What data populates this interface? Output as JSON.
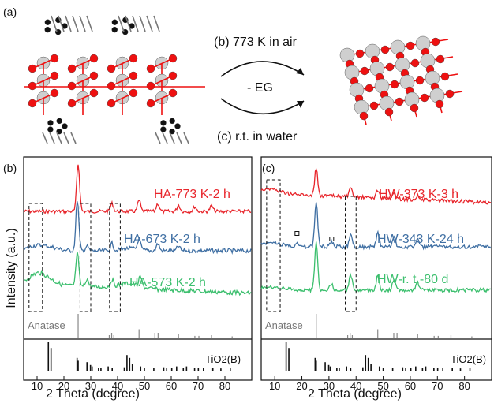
{
  "scheme": {
    "panel_label": "(a)",
    "top_label": "(b) 773 K in air",
    "middle_label": "- EG",
    "bottom_label": "(c) r.t. in water"
  },
  "ylabel": "Intensity (a.u.)",
  "xlabel": "2 Theta (degree)",
  "ref_label_anatase": "Anatase",
  "ref_label_tio2b": "TiO2(B)",
  "colors": {
    "red": "#e8262c",
    "blue": "#3f6fa3",
    "green": "#3cbf6e",
    "grey": "#888888",
    "black": "#111111"
  },
  "chart_data": [
    {
      "type": "line",
      "panel_label": "(b)",
      "xlabel": "2 Theta (degree)",
      "ylabel": "Intensity (a.u.)",
      "xlim": [
        5,
        90
      ],
      "xticks": [
        10,
        20,
        30,
        40,
        50,
        60,
        70,
        80
      ],
      "series": [
        {
          "name": "HA-773 K-2 h",
          "color": "#e8262c"
        },
        {
          "name": "HA-673 K-2 h",
          "color": "#3f6fa3"
        },
        {
          "name": "HA-573 K-2 h",
          "color": "#3cbf6e"
        }
      ],
      "anatase_lines": [
        {
          "x": 25.3,
          "h": 1.0
        },
        {
          "x": 36.9,
          "h": 0.1
        },
        {
          "x": 37.8,
          "h": 0.2
        },
        {
          "x": 38.6,
          "h": 0.1
        },
        {
          "x": 48.0,
          "h": 0.35
        },
        {
          "x": 53.9,
          "h": 0.2
        },
        {
          "x": 55.1,
          "h": 0.2
        },
        {
          "x": 62.7,
          "h": 0.15
        },
        {
          "x": 68.8,
          "h": 0.07
        },
        {
          "x": 70.3,
          "h": 0.07
        },
        {
          "x": 75.0,
          "h": 0.1
        },
        {
          "x": 82.7,
          "h": 0.05
        }
      ],
      "tio2b_lines": [
        {
          "x": 14.2,
          "h": 1.0
        },
        {
          "x": 15.2,
          "h": 0.8
        },
        {
          "x": 24.9,
          "h": 0.45
        },
        {
          "x": 25.3,
          "h": 0.35
        },
        {
          "x": 28.6,
          "h": 0.3
        },
        {
          "x": 29.9,
          "h": 0.2
        },
        {
          "x": 30.5,
          "h": 0.15
        },
        {
          "x": 32.9,
          "h": 0.1
        },
        {
          "x": 33.8,
          "h": 0.1
        },
        {
          "x": 36.5,
          "h": 0.15
        },
        {
          "x": 38.0,
          "h": 0.1
        },
        {
          "x": 42.5,
          "h": 0.12
        },
        {
          "x": 43.5,
          "h": 0.55
        },
        {
          "x": 44.5,
          "h": 0.45
        },
        {
          "x": 45.5,
          "h": 0.25
        },
        {
          "x": 48.6,
          "h": 0.15
        },
        {
          "x": 50.0,
          "h": 0.1
        },
        {
          "x": 53.5,
          "h": 0.1
        },
        {
          "x": 57.2,
          "h": 0.12
        },
        {
          "x": 58.3,
          "h": 0.1
        },
        {
          "x": 60.2,
          "h": 0.1
        },
        {
          "x": 62.0,
          "h": 0.15
        },
        {
          "x": 64.5,
          "h": 0.1
        },
        {
          "x": 65.7,
          "h": 0.15
        },
        {
          "x": 68.7,
          "h": 0.1
        },
        {
          "x": 70.1,
          "h": 0.1
        },
        {
          "x": 72.0,
          "h": 0.1
        },
        {
          "x": 75.5,
          "h": 0.1
        },
        {
          "x": 78.5,
          "h": 0.08
        },
        {
          "x": 82.0,
          "h": 0.1
        }
      ]
    },
    {
      "type": "line",
      "panel_label": "(c)",
      "xlabel": "2 Theta (degree)",
      "ylabel": "",
      "xlim": [
        5,
        90
      ],
      "xticks": [
        10,
        20,
        30,
        40,
        50,
        60,
        70,
        80
      ],
      "series": [
        {
          "name": "HW-373 K-3 h",
          "color": "#e8262c"
        },
        {
          "name": "HW-343 K-24 h",
          "color": "#3f6fa3"
        },
        {
          "name": "HW-r. t.-80 d",
          "color": "#3cbf6e"
        }
      ],
      "anatase_lines": [
        {
          "x": 25.3,
          "h": 1.0
        },
        {
          "x": 36.9,
          "h": 0.1
        },
        {
          "x": 37.8,
          "h": 0.2
        },
        {
          "x": 38.6,
          "h": 0.1
        },
        {
          "x": 48.0,
          "h": 0.35
        },
        {
          "x": 53.9,
          "h": 0.2
        },
        {
          "x": 55.1,
          "h": 0.2
        },
        {
          "x": 62.7,
          "h": 0.15
        },
        {
          "x": 68.8,
          "h": 0.07
        },
        {
          "x": 70.3,
          "h": 0.07
        },
        {
          "x": 75.0,
          "h": 0.1
        },
        {
          "x": 82.7,
          "h": 0.05
        }
      ],
      "tio2b_lines": [
        {
          "x": 14.2,
          "h": 1.0
        },
        {
          "x": 15.2,
          "h": 0.8
        },
        {
          "x": 24.9,
          "h": 0.45
        },
        {
          "x": 25.3,
          "h": 0.35
        },
        {
          "x": 28.6,
          "h": 0.3
        },
        {
          "x": 29.9,
          "h": 0.2
        },
        {
          "x": 30.5,
          "h": 0.15
        },
        {
          "x": 32.9,
          "h": 0.1
        },
        {
          "x": 33.8,
          "h": 0.1
        },
        {
          "x": 36.5,
          "h": 0.15
        },
        {
          "x": 38.0,
          "h": 0.1
        },
        {
          "x": 42.5,
          "h": 0.12
        },
        {
          "x": 43.5,
          "h": 0.55
        },
        {
          "x": 44.5,
          "h": 0.45
        },
        {
          "x": 45.5,
          "h": 0.25
        },
        {
          "x": 48.6,
          "h": 0.15
        },
        {
          "x": 50.0,
          "h": 0.1
        },
        {
          "x": 53.5,
          "h": 0.1
        },
        {
          "x": 57.2,
          "h": 0.12
        },
        {
          "x": 58.3,
          "h": 0.1
        },
        {
          "x": 60.2,
          "h": 0.1
        },
        {
          "x": 62.0,
          "h": 0.15
        },
        {
          "x": 64.5,
          "h": 0.1
        },
        {
          "x": 65.7,
          "h": 0.15
        },
        {
          "x": 68.7,
          "h": 0.1
        },
        {
          "x": 70.1,
          "h": 0.1
        },
        {
          "x": 72.0,
          "h": 0.1
        },
        {
          "x": 75.5,
          "h": 0.1
        },
        {
          "x": 78.5,
          "h": 0.08
        },
        {
          "x": 82.0,
          "h": 0.1
        }
      ]
    }
  ]
}
